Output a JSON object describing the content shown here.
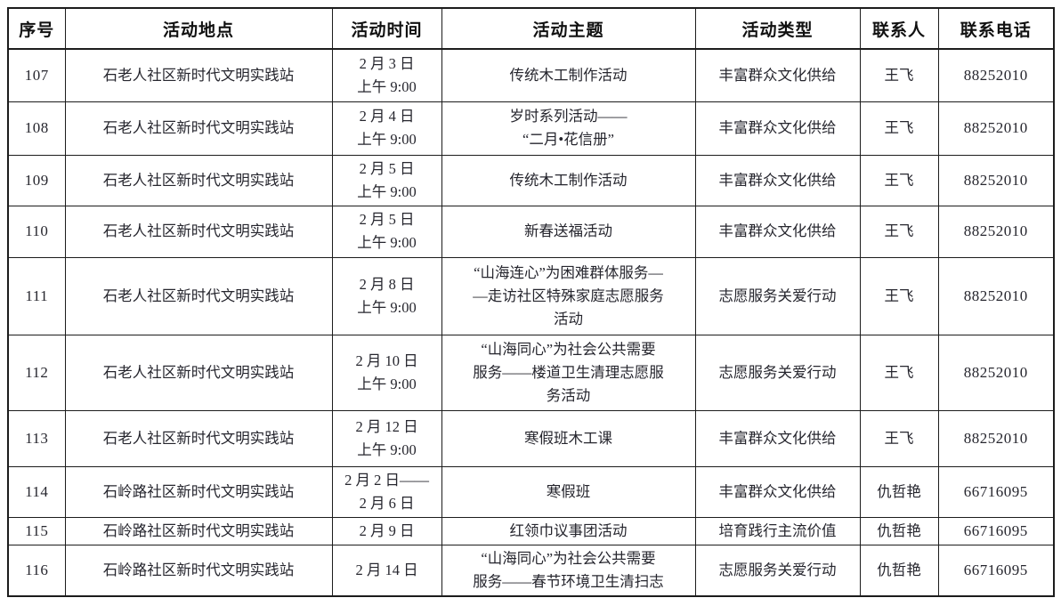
{
  "table": {
    "headers": {
      "serial": "序号",
      "location": "活动地点",
      "time": "活动时间",
      "theme": "活动主题",
      "type": "活动类型",
      "contact": "联系人",
      "phone": "联系电话"
    },
    "rows": [
      {
        "id": "107",
        "location": "石老人社区新时代文明实践站",
        "time": "2 月 3 日\n上午 9:00",
        "theme": "传统木工制作活动",
        "type": "丰富群众文化供给",
        "contact": "王飞",
        "phone": "88252010"
      },
      {
        "id": "108",
        "location": "石老人社区新时代文明实践站",
        "time": "2 月 4 日\n上午 9:00",
        "theme": "岁时系列活动——\n“二月•花信册”",
        "type": "丰富群众文化供给",
        "contact": "王飞",
        "phone": "88252010"
      },
      {
        "id": "109",
        "location": "石老人社区新时代文明实践站",
        "time": "2 月 5 日\n上午 9:00",
        "theme": "传统木工制作活动",
        "type": "丰富群众文化供给",
        "contact": "王飞",
        "phone": "88252010"
      },
      {
        "id": "110",
        "location": "石老人社区新时代文明实践站",
        "time": "2 月 5 日\n上午 9:00",
        "theme": "新春送福活动",
        "type": "丰富群众文化供给",
        "contact": "王飞",
        "phone": "88252010"
      },
      {
        "id": "111",
        "location": "石老人社区新时代文明实践站",
        "time": "2 月 8 日\n上午 9:00",
        "theme": "“山海连心”为困难群体服务—\n—走访社区特殊家庭志愿服务\n活动",
        "type": "志愿服务关爱行动",
        "contact": "王飞",
        "phone": "88252010"
      },
      {
        "id": "112",
        "location": "石老人社区新时代文明实践站",
        "time": "2 月 10 日\n上午 9:00",
        "theme": "“山海同心”为社会公共需要\n服务——楼道卫生清理志愿服\n务活动",
        "type": "志愿服务关爱行动",
        "contact": "王飞",
        "phone": "88252010"
      },
      {
        "id": "113",
        "location": "石老人社区新时代文明实践站",
        "time": "2 月 12 日\n上午 9:00",
        "theme": "寒假班木工课",
        "type": "丰富群众文化供给",
        "contact": "王飞",
        "phone": "88252010"
      },
      {
        "id": "114",
        "location": "石岭路社区新时代文明实践站",
        "time": "2 月 2 日——\n2 月 6 日",
        "theme": "寒假班",
        "type": "丰富群众文化供给",
        "contact": "仇哲艳",
        "phone": "66716095"
      },
      {
        "id": "115",
        "location": "石岭路社区新时代文明实践站",
        "time": "2 月 9 日",
        "theme": "红领巾议事团活动",
        "type": "培育践行主流价值",
        "contact": "仇哲艳",
        "phone": "66716095"
      },
      {
        "id": "116",
        "location": "石岭路社区新时代文明实践站",
        "time": "2 月 14 日",
        "theme": "“山海同心”为社会公共需要\n服务——春节环境卫生清扫志",
        "type": "志愿服务关爱行动",
        "contact": "仇哲艳",
        "phone": "66716095"
      }
    ]
  }
}
